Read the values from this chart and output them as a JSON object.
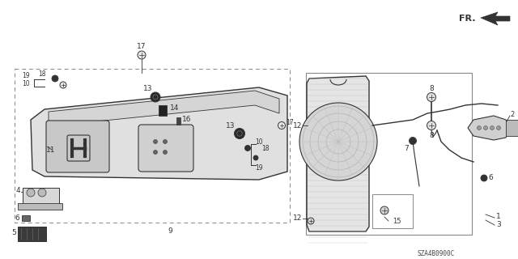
{
  "bg_color": "#ffffff",
  "diagram_code": "SZA4B0900C",
  "fr_label": "FR.",
  "line_color": "#333333",
  "light_gray": "#cccccc",
  "mid_gray": "#888888",
  "dark_gray": "#444444"
}
